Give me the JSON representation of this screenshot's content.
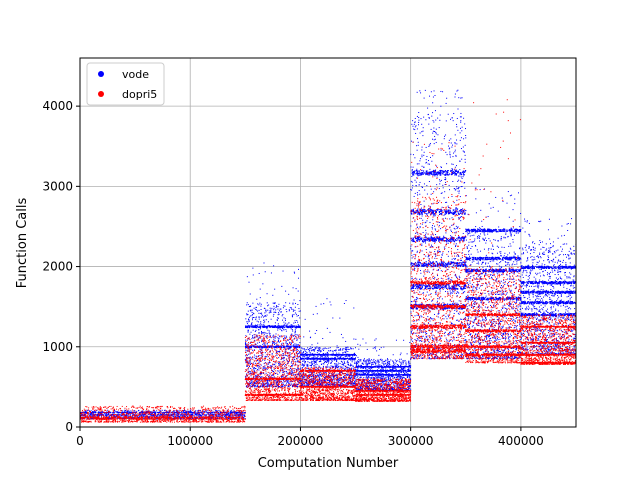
{
  "chart_data": {
    "type": "scatter",
    "title": "",
    "xlabel": "Computation Number",
    "ylabel": "Function Calls",
    "xlim": [
      0,
      450000
    ],
    "ylim": [
      0,
      4600
    ],
    "xticks": [
      0,
      100000,
      200000,
      300000,
      400000
    ],
    "xtick_labels": [
      "0",
      "100000",
      "200000",
      "300000",
      "400000"
    ],
    "yticks": [
      0,
      1000,
      2000,
      3000,
      4000
    ],
    "ytick_labels": [
      "0",
      "1000",
      "2000",
      "3000",
      "4000"
    ],
    "grid": true,
    "legend_position": "upper-left",
    "marker_size_note": "dense point clouds, approximated by segment ranges",
    "series": [
      {
        "name": "vode",
        "color": "#0000ff",
        "segments": [
          {
            "x_range": [
              0,
              150000
            ],
            "y_range": [
              100,
              210
            ],
            "levels": [
              150,
              180
            ]
          },
          {
            "x_range": [
              150000,
              200000
            ],
            "y_range": [
              500,
              1550
            ],
            "levels": [
              1250,
              1000
            ],
            "outliers_high": 2050
          },
          {
            "x_range": [
              200000,
              250000
            ],
            "y_range": [
              500,
              1000
            ],
            "levels": [
              900,
              850
            ],
            "outliers_high": 1600
          },
          {
            "x_range": [
              250000,
              300000
            ],
            "y_range": [
              450,
              850
            ],
            "levels": [
              750,
              700,
              650
            ],
            "outliers_high": 1100
          },
          {
            "x_range": [
              300000,
              350000
            ],
            "y_range": [
              850,
              3900
            ],
            "levels": [
              3170,
              2680,
              2340,
              2030,
              1750,
              1500
            ],
            "outliers_high": 4200
          },
          {
            "x_range": [
              350000,
              400000
            ],
            "y_range": [
              850,
              2500
            ],
            "levels": [
              2450,
              2100,
              1950,
              1600
            ],
            "outliers_high": 3000
          },
          {
            "x_range": [
              400000,
              450000
            ],
            "y_range": [
              900,
              2300
            ],
            "levels": [
              1990,
              1800,
              1680,
              1550,
              1400
            ],
            "outliers_high": 2600
          }
        ]
      },
      {
        "name": "dopri5",
        "color": "#ff0000",
        "segments": [
          {
            "x_range": [
              0,
              150000
            ],
            "y_range": [
              60,
              260
            ],
            "levels": [
              120,
              100
            ]
          },
          {
            "x_range": [
              150000,
              200000
            ],
            "y_range": [
              330,
              1150
            ],
            "levels": [
              400,
              600
            ]
          },
          {
            "x_range": [
              200000,
              250000
            ],
            "y_range": [
              330,
              750
            ],
            "levels": [
              700,
              500
            ]
          },
          {
            "x_range": [
              250000,
              300000
            ],
            "y_range": [
              320,
              600
            ],
            "levels": [
              400,
              450
            ]
          },
          {
            "x_range": [
              300000,
              350000
            ],
            "y_range": [
              850,
              2900
            ],
            "levels": [
              1800,
              1500,
              1250,
              1000,
              950
            ],
            "outliers_high": 3600
          },
          {
            "x_range": [
              350000,
              400000
            ],
            "y_range": [
              800,
              2000
            ],
            "levels": [
              1400,
              1200,
              1000,
              900
            ],
            "outliers_high": 4100
          },
          {
            "x_range": [
              400000,
              450000
            ],
            "y_range": [
              780,
              1400
            ],
            "levels": [
              1250,
              1050,
              900,
              800
            ]
          }
        ]
      }
    ]
  }
}
